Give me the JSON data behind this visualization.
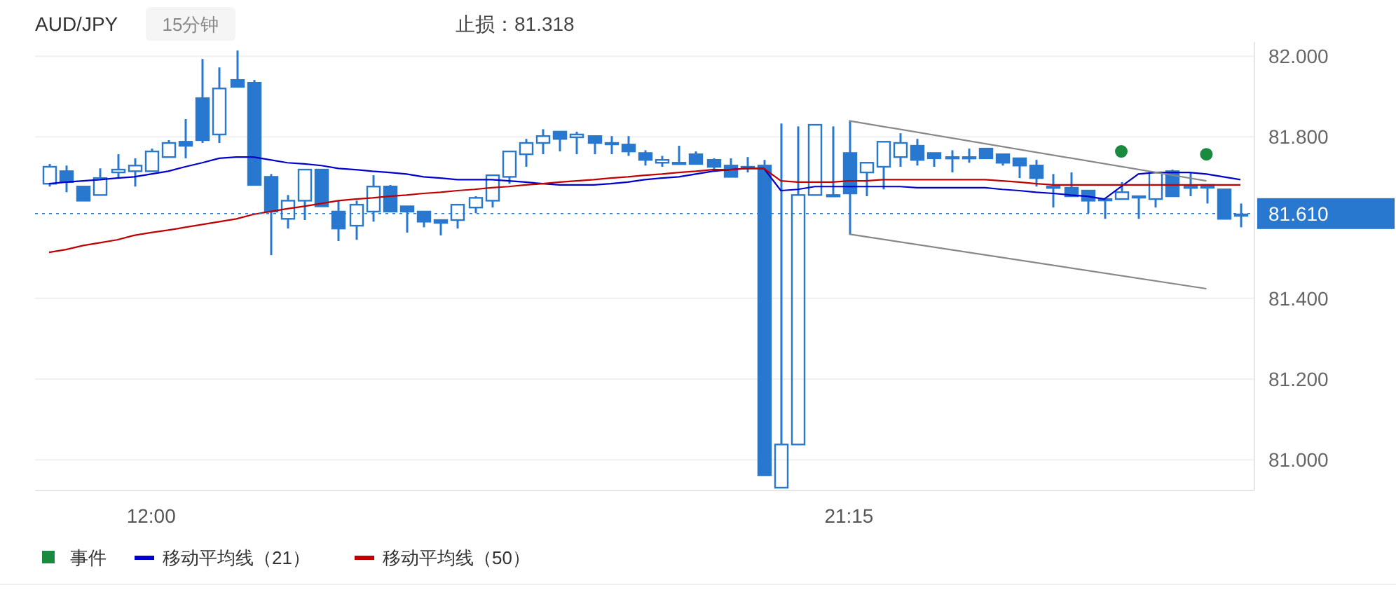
{
  "chart_data": {
    "type": "candlestick",
    "title": "AUD/JPY",
    "subtitle": "15分钟",
    "annotations": [
      "止损：81.318"
    ],
    "categories": [
      null,
      null,
      null,
      null,
      null,
      null,
      "12:00",
      null,
      null,
      null,
      null,
      null,
      null,
      null,
      null,
      null,
      null,
      null,
      null,
      null,
      null,
      null,
      null,
      null,
      null,
      null,
      null,
      null,
      null,
      null,
      null,
      null,
      null,
      null,
      null,
      null,
      null,
      null,
      null,
      null,
      null,
      null,
      null,
      null,
      null,
      null,
      null,
      "21:15",
      null,
      null,
      null,
      null,
      null,
      null,
      null,
      null,
      null,
      null,
      null,
      null,
      null,
      null,
      null,
      null,
      null,
      null,
      null,
      null,
      null,
      null,
      null
    ],
    "color": "#2878d0",
    "ohlc": [
      [
        81.684,
        81.733,
        81.677,
        81.726
      ],
      [
        81.715,
        81.729,
        81.663,
        81.688
      ],
      [
        81.677,
        81.677,
        81.642,
        81.642
      ],
      [
        81.656,
        81.722,
        81.656,
        81.698
      ],
      [
        81.712,
        81.757,
        81.698,
        81.719
      ],
      [
        81.715,
        81.747,
        81.677,
        81.729
      ],
      [
        81.715,
        81.771,
        81.715,
        81.764
      ],
      [
        81.75,
        81.792,
        81.75,
        81.785
      ],
      [
        81.788,
        81.844,
        81.747,
        81.778
      ],
      [
        81.896,
        81.993,
        81.785,
        81.792
      ],
      [
        81.806,
        81.972,
        81.785,
        81.92
      ],
      [
        81.941,
        82.014,
        81.924,
        81.924
      ],
      [
        81.934,
        81.941,
        81.681,
        81.681
      ],
      [
        81.701,
        81.708,
        81.507,
        81.615
      ],
      [
        81.597,
        81.656,
        81.573,
        81.642
      ],
      [
        81.642,
        81.719,
        81.594,
        81.719
      ],
      [
        81.719,
        81.719,
        81.628,
        81.628
      ],
      [
        81.615,
        81.642,
        81.542,
        81.573
      ],
      [
        81.58,
        81.642,
        81.545,
        81.632
      ],
      [
        81.615,
        81.705,
        81.59,
        81.677
      ],
      [
        81.677,
        81.681,
        81.615,
        81.615
      ],
      [
        81.628,
        81.628,
        81.563,
        81.615
      ],
      [
        81.615,
        81.615,
        81.576,
        81.59
      ],
      [
        81.594,
        81.594,
        81.556,
        81.587
      ],
      [
        81.594,
        81.632,
        81.573,
        81.632
      ],
      [
        81.625,
        81.653,
        81.611,
        81.649
      ],
      [
        81.642,
        81.705,
        81.625,
        81.705
      ],
      [
        81.701,
        81.764,
        81.684,
        81.764
      ],
      [
        81.757,
        81.795,
        81.726,
        81.785
      ],
      [
        81.785,
        81.819,
        81.757,
        81.802
      ],
      [
        81.813,
        81.813,
        81.764,
        81.795
      ],
      [
        81.799,
        81.813,
        81.757,
        81.806
      ],
      [
        81.802,
        81.802,
        81.757,
        81.785
      ],
      [
        81.785,
        81.802,
        81.757,
        81.785
      ],
      [
        81.781,
        81.802,
        81.753,
        81.764
      ],
      [
        81.76,
        81.767,
        81.729,
        81.743
      ],
      [
        81.736,
        81.753,
        81.726,
        81.743
      ],
      [
        81.736,
        81.778,
        81.736,
        81.736
      ],
      [
        81.757,
        81.764,
        81.733,
        81.733
      ],
      [
        81.743,
        81.747,
        81.719,
        81.726
      ],
      [
        81.729,
        81.747,
        81.701,
        81.701
      ],
      [
        81.726,
        81.75,
        81.712,
        81.726
      ],
      [
        81.729,
        81.743,
        80.962,
        80.962
      ],
      [
        80.931,
        81.833,
        80.931,
        81.038
      ],
      [
        81.038,
        81.826,
        81.038,
        81.656
      ],
      [
        81.656,
        81.83,
        81.656,
        81.83
      ],
      [
        81.656,
        81.826,
        81.656,
        81.656
      ],
      [
        81.76,
        81.84,
        81.559,
        81.66
      ],
      [
        81.712,
        81.736,
        81.653,
        81.736
      ],
      [
        81.726,
        81.788,
        81.67,
        81.788
      ],
      [
        81.75,
        81.809,
        81.726,
        81.785
      ],
      [
        81.778,
        81.795,
        81.729,
        81.743
      ],
      [
        81.76,
        81.76,
        81.726,
        81.747
      ],
      [
        81.75,
        81.767,
        81.712,
        81.75
      ],
      [
        81.75,
        81.771,
        81.736,
        81.75
      ],
      [
        81.771,
        81.771,
        81.747,
        81.747
      ],
      [
        81.757,
        81.757,
        81.729,
        81.736
      ],
      [
        81.747,
        81.747,
        81.698,
        81.729
      ],
      [
        81.729,
        81.743,
        81.677,
        81.698
      ],
      [
        81.677,
        81.708,
        81.625,
        81.677
      ],
      [
        81.674,
        81.712,
        81.653,
        81.653
      ],
      [
        81.667,
        81.667,
        81.611,
        81.642
      ],
      [
        81.646,
        81.646,
        81.597,
        81.646
      ],
      [
        81.646,
        81.688,
        81.646,
        81.663
      ],
      [
        81.653,
        81.653,
        81.597,
        81.653
      ],
      [
        81.646,
        81.712,
        81.625,
        81.712
      ],
      [
        81.715,
        81.719,
        81.653,
        81.653
      ],
      [
        81.677,
        81.712,
        81.653,
        81.674
      ],
      [
        81.681,
        81.681,
        81.635,
        81.674
      ],
      [
        81.67,
        81.67,
        81.597,
        81.597
      ],
      [
        81.608,
        81.635,
        81.576,
        81.608
      ]
    ],
    "series": [
      {
        "name": "事件",
        "type": "scatter",
        "color": "#1a8a3e",
        "values": [
          null,
          null,
          null,
          null,
          null,
          null,
          null,
          null,
          null,
          null,
          null,
          null,
          null,
          null,
          null,
          null,
          null,
          null,
          null,
          null,
          null,
          null,
          null,
          null,
          null,
          null,
          null,
          null,
          null,
          null,
          null,
          null,
          null,
          null,
          null,
          null,
          null,
          null,
          null,
          null,
          null,
          null,
          null,
          null,
          null,
          null,
          null,
          null,
          null,
          null,
          null,
          null,
          null,
          null,
          null,
          null,
          null,
          null,
          null,
          null,
          null,
          null,
          null,
          81.764,
          null,
          null,
          null,
          null,
          81.757,
          null,
          null
        ]
      },
      {
        "name": "移动平均线（21）",
        "type": "line",
        "color": "#0000cc",
        "values": [
          81.684,
          81.688,
          81.691,
          81.694,
          81.698,
          81.701,
          81.708,
          81.715,
          81.726,
          81.736,
          81.747,
          81.75,
          81.75,
          81.743,
          81.736,
          81.733,
          81.729,
          81.722,
          81.719,
          81.715,
          81.712,
          81.708,
          81.701,
          81.698,
          81.694,
          81.694,
          81.694,
          81.691,
          81.688,
          81.684,
          81.681,
          81.681,
          81.681,
          81.684,
          81.688,
          81.694,
          81.698,
          81.701,
          81.708,
          81.715,
          81.719,
          81.722,
          81.722,
          81.667,
          81.67,
          81.677,
          81.677,
          81.677,
          81.677,
          81.677,
          81.677,
          81.674,
          81.674,
          81.674,
          81.674,
          81.674,
          81.67,
          81.667,
          81.663,
          81.66,
          81.656,
          81.653,
          81.646,
          81.677,
          81.708,
          81.712,
          81.712,
          81.712,
          81.708,
          81.701,
          81.694
        ]
      },
      {
        "name": "移动平均线（50）",
        "type": "line",
        "color": "#c00000",
        "values": [
          81.514,
          81.521,
          81.531,
          81.538,
          81.545,
          81.556,
          81.563,
          81.569,
          81.576,
          81.583,
          81.59,
          81.597,
          81.608,
          81.615,
          81.622,
          81.628,
          81.635,
          81.642,
          81.646,
          81.649,
          81.653,
          81.656,
          81.66,
          81.663,
          81.667,
          81.67,
          81.674,
          81.677,
          81.681,
          81.684,
          81.688,
          81.691,
          81.694,
          81.698,
          81.701,
          81.705,
          81.708,
          81.712,
          81.715,
          81.719,
          81.719,
          81.722,
          81.722,
          81.691,
          81.688,
          81.688,
          81.688,
          81.691,
          81.691,
          81.694,
          81.694,
          81.694,
          81.694,
          81.694,
          81.694,
          81.694,
          81.691,
          81.688,
          81.684,
          81.681,
          81.681,
          81.681,
          81.681,
          81.681,
          81.681,
          81.681,
          81.681,
          81.681,
          81.681,
          81.681,
          81.681
        ]
      },
      {
        "type": "line",
        "color": "#888888",
        "values": [
          null,
          null,
          null,
          null,
          null,
          null,
          null,
          null,
          null,
          null,
          null,
          null,
          null,
          null,
          null,
          null,
          null,
          null,
          null,
          null,
          null,
          null,
          null,
          null,
          null,
          null,
          null,
          null,
          null,
          null,
          null,
          null,
          null,
          null,
          null,
          null,
          null,
          null,
          null,
          null,
          null,
          null,
          null,
          null,
          null,
          null,
          null,
          81.84,
          null,
          null,
          null,
          null,
          null,
          null,
          null,
          null,
          null,
          null,
          null,
          null,
          null,
          null,
          null,
          null,
          null,
          null,
          null,
          null,
          81.691,
          null,
          null
        ]
      },
      {
        "type": "line",
        "color": "#888888",
        "values": [
          null,
          null,
          null,
          null,
          null,
          null,
          null,
          null,
          null,
          null,
          null,
          null,
          null,
          null,
          null,
          null,
          null,
          null,
          null,
          null,
          null,
          null,
          null,
          null,
          null,
          null,
          null,
          null,
          null,
          null,
          null,
          null,
          null,
          null,
          null,
          null,
          null,
          null,
          null,
          null,
          null,
          null,
          null,
          null,
          null,
          null,
          null,
          81.559,
          null,
          null,
          null,
          null,
          null,
          null,
          null,
          null,
          null,
          null,
          null,
          null,
          null,
          null,
          null,
          null,
          null,
          null,
          null,
          null,
          81.424,
          null,
          null
        ]
      }
    ],
    "ylim": [
      80.924,
      82.035
    ],
    "yticks": [
      {
        "value": 81.0,
        "label": "81.000"
      },
      {
        "value": 81.2,
        "label": "81.200"
      },
      {
        "value": 81.4,
        "label": "81.400"
      },
      {
        "value": 81.8,
        "label": "81.800"
      },
      {
        "value": 82.0,
        "label": "82.000"
      }
    ],
    "ref_lines": [
      {
        "axis": "y",
        "value": 81.61,
        "label": "81.610",
        "color": "#2878d0"
      }
    ],
    "grid": "y",
    "legend": "bottom left"
  }
}
